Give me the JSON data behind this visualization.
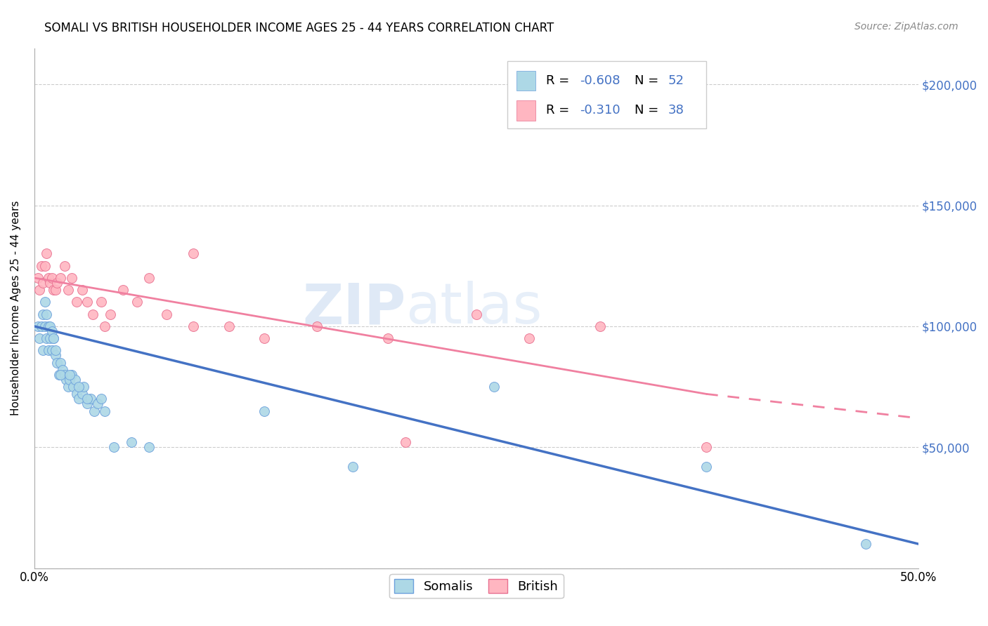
{
  "title": "SOMALI VS BRITISH HOUSEHOLDER INCOME AGES 25 - 44 YEARS CORRELATION CHART",
  "source": "Source: ZipAtlas.com",
  "ylabel": "Householder Income Ages 25 - 44 years",
  "xlim": [
    0.0,
    0.5
  ],
  "ylim": [
    0,
    215000
  ],
  "yticks": [
    0,
    50000,
    100000,
    150000,
    200000
  ],
  "ytick_labels": [
    "",
    "$50,000",
    "$100,000",
    "$150,000",
    "$200,000"
  ],
  "xticks": [
    0.0,
    0.05,
    0.1,
    0.15,
    0.2,
    0.25,
    0.3,
    0.35,
    0.4,
    0.45,
    0.5
  ],
  "xtick_labels": [
    "0.0%",
    "",
    "",
    "",
    "",
    "",
    "",
    "",
    "",
    "",
    "50.0%"
  ],
  "somali_color": "#ADD8E6",
  "somali_color_edge": "#6CA0DC",
  "british_color": "#FFB6C1",
  "british_color_edge": "#E87090",
  "blue_line_color": "#4472C4",
  "pink_line_color": "#F080A0",
  "R_somali": "-0.608",
  "N_somali": "52",
  "R_british": "-0.310",
  "N_british": "38",
  "blue_label_color": "#4472C4",
  "somali_x": [
    0.002,
    0.003,
    0.004,
    0.005,
    0.006,
    0.007,
    0.008,
    0.009,
    0.01,
    0.011,
    0.012,
    0.013,
    0.014,
    0.015,
    0.016,
    0.017,
    0.018,
    0.019,
    0.02,
    0.021,
    0.022,
    0.023,
    0.024,
    0.025,
    0.027,
    0.028,
    0.03,
    0.032,
    0.034,
    0.036,
    0.038,
    0.04,
    0.005,
    0.006,
    0.007,
    0.008,
    0.009,
    0.01,
    0.011,
    0.012,
    0.015,
    0.02,
    0.025,
    0.03,
    0.045,
    0.055,
    0.065,
    0.13,
    0.18,
    0.26,
    0.38,
    0.47
  ],
  "somali_y": [
    100000,
    95000,
    100000,
    90000,
    100000,
    95000,
    90000,
    95000,
    90000,
    95000,
    88000,
    85000,
    80000,
    85000,
    82000,
    80000,
    78000,
    75000,
    78000,
    80000,
    75000,
    78000,
    72000,
    70000,
    72000,
    75000,
    68000,
    70000,
    65000,
    68000,
    70000,
    65000,
    105000,
    110000,
    105000,
    100000,
    100000,
    98000,
    95000,
    90000,
    80000,
    80000,
    75000,
    70000,
    50000,
    52000,
    50000,
    65000,
    42000,
    75000,
    42000,
    10000
  ],
  "british_x": [
    0.002,
    0.003,
    0.004,
    0.005,
    0.006,
    0.007,
    0.008,
    0.009,
    0.01,
    0.011,
    0.012,
    0.013,
    0.015,
    0.017,
    0.019,
    0.021,
    0.024,
    0.027,
    0.03,
    0.033,
    0.038,
    0.043,
    0.05,
    0.058,
    0.065,
    0.075,
    0.09,
    0.11,
    0.13,
    0.16,
    0.2,
    0.25,
    0.28,
    0.32,
    0.04,
    0.09,
    0.21,
    0.38
  ],
  "british_y": [
    120000,
    115000,
    125000,
    118000,
    125000,
    130000,
    120000,
    118000,
    120000,
    115000,
    115000,
    118000,
    120000,
    125000,
    115000,
    120000,
    110000,
    115000,
    110000,
    105000,
    110000,
    105000,
    115000,
    110000,
    120000,
    105000,
    130000,
    100000,
    95000,
    100000,
    95000,
    105000,
    95000,
    100000,
    100000,
    100000,
    52000,
    50000
  ],
  "watermark_zip": "ZIP",
  "watermark_atlas": "atlas",
  "background_color": "#FFFFFF",
  "grid_color": "#CCCCCC",
  "legend_blue_color": "#4472C4"
}
